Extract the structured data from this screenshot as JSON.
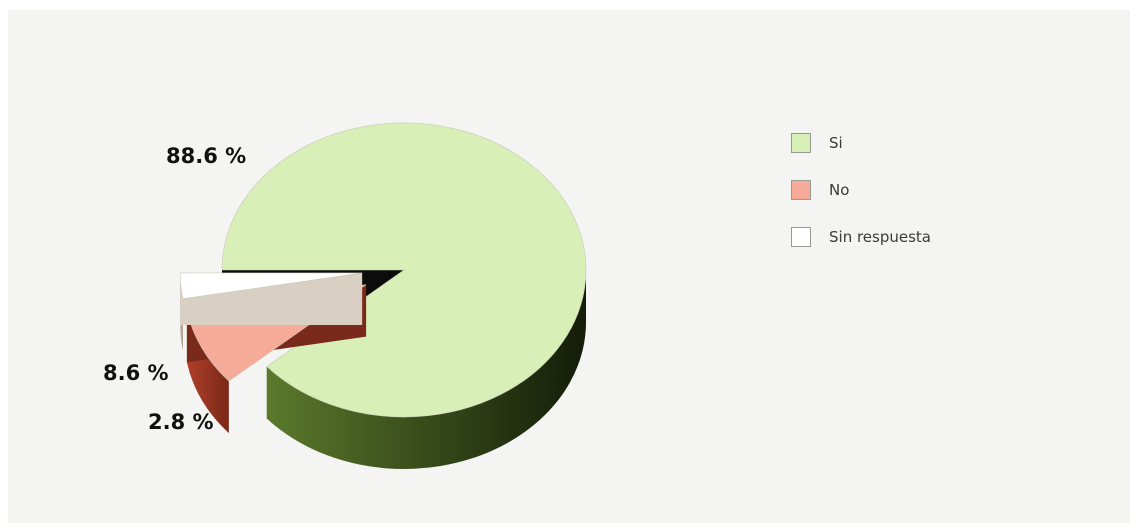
{
  "chart_data": {
    "type": "pie",
    "title": "",
    "categories": [
      "Si",
      "No",
      "Sin respuesta"
    ],
    "values": [
      88.6,
      8.6,
      2.8
    ],
    "data_labels": [
      "88.6 %",
      "8.6 %",
      "2.8 %"
    ],
    "unit": "%",
    "legend": "right",
    "style": "3d-exploded",
    "colors": {
      "Si": "#d8efb8",
      "No": "#f6aa98",
      "Sin respuesta": "#ffffff"
    }
  },
  "legend_items": [
    {
      "label": "Si",
      "color": "#d8efb8"
    },
    {
      "label": "No",
      "color": "#f6aa98"
    },
    {
      "label": "Sin respuesta",
      "color": "#ffffff"
    }
  ]
}
